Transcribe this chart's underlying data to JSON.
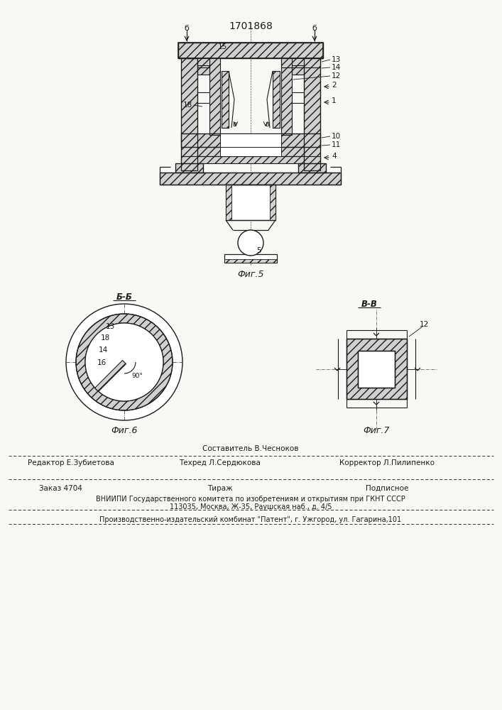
{
  "patent_number": "1701868",
  "bg": "#f8f8f5",
  "footer": {
    "composer": "Составитель В.Чесноков",
    "editor": "Редактор Е.Зубиетова",
    "techred": "Техред Л.Сердюкова",
    "corrector": "Корректор Л.Пилипенко",
    "order": "Заказ 4704",
    "tirazh": "Тираж",
    "podpisnoe": "Подписное",
    "vniipи": "ВНИИПИ Государственного комитета по изобретениям и открытиям при ГКНТ СССР",
    "address1": "113035, Москва, Ж-35, Раушская наб., д. 4/5",
    "kombitat": "Производственно-издательский комбинат \"Патент\", г. Ужгород, ул. Гагарина,101"
  }
}
